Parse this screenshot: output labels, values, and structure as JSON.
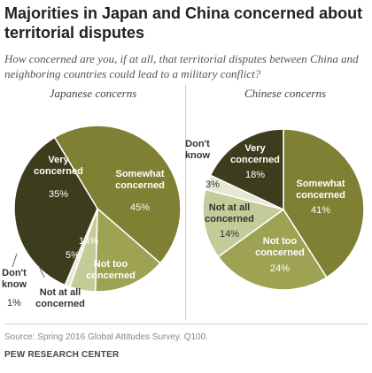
{
  "title": "Majorities in Japan and China concerned about territorial disputes",
  "subtitle": "How concerned are you, if at all, that territorial disputes between China and neighboring countries could lead to a military conflict?",
  "source": "Source: Spring 2016 Global Attitudes Survey. Q100.",
  "organization": "PEW RESEARCH CENTER",
  "colors": {
    "very_concerned": "#3d3d1e",
    "somewhat_concerned": "#7f8033",
    "not_too_concerned": "#9ea253",
    "not_at_all_concerned": "#c3cb98",
    "dont_know": "#e6e9d2"
  },
  "chart_data": [
    {
      "type": "pie",
      "title": "Japanese concerns",
      "slices": [
        {
          "key": "somewhat_concerned",
          "label": "Somewhat concerned",
          "value": 45,
          "display": "45%"
        },
        {
          "key": "not_too_concerned",
          "label": "Not too concerned",
          "value": 14,
          "display": "14%"
        },
        {
          "key": "not_at_all_concerned",
          "label": "Not at all concerned",
          "value": 5,
          "display": "5%"
        },
        {
          "key": "dont_know",
          "label": "Don't know",
          "value": 1,
          "display": "1%"
        },
        {
          "key": "very_concerned",
          "label": "Very concerned",
          "value": 35,
          "display": "35%"
        }
      ]
    },
    {
      "type": "pie",
      "title": "Chinese concerns",
      "slices": [
        {
          "key": "somewhat_concerned",
          "label": "Somewhat concerned",
          "value": 41,
          "display": "41%"
        },
        {
          "key": "not_too_concerned",
          "label": "Not too concerned",
          "value": 24,
          "display": "24%"
        },
        {
          "key": "not_at_all_concerned",
          "label": "Not at all concerned",
          "value": 14,
          "display": "14%"
        },
        {
          "key": "dont_know",
          "label": "Don't know",
          "value": 3,
          "display": "3%"
        },
        {
          "key": "very_concerned",
          "label": "Very concerned",
          "value": 18,
          "display": "18%"
        }
      ]
    }
  ]
}
